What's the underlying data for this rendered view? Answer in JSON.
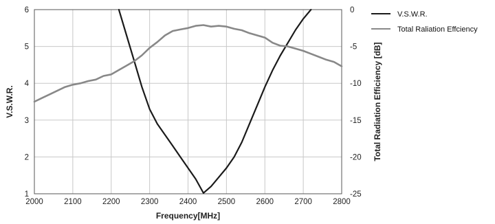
{
  "chart_data": {
    "type": "line",
    "xlabel": "Frequency[MHz]",
    "ylabel_left": "V.S.W.R.",
    "ylabel_right": "Total Radiation Efficiency [dB]",
    "xlim": [
      2000,
      2800
    ],
    "ylim_left": [
      1,
      6
    ],
    "ylim_right": [
      -25,
      0
    ],
    "x_ticks": [
      2000,
      2100,
      2200,
      2300,
      2400,
      2500,
      2600,
      2700,
      2800
    ],
    "y_left_ticks": [
      1,
      2,
      3,
      4,
      5,
      6
    ],
    "y_right_ticks": [
      0,
      -5,
      -10,
      -15,
      -20,
      -25
    ],
    "grid": true,
    "legend_position": "outside-top-right",
    "series": [
      {
        "name": "V.S.W.R.",
        "axis": "left",
        "color": "#1a1a1a",
        "x": [
          2220,
          2240,
          2260,
          2280,
          2300,
          2320,
          2340,
          2360,
          2380,
          2400,
          2420,
          2440,
          2460,
          2480,
          2500,
          2520,
          2540,
          2560,
          2580,
          2600,
          2620,
          2640,
          2660,
          2680,
          2700,
          2720
        ],
        "y": [
          6.0,
          5.3,
          4.6,
          3.9,
          3.3,
          2.9,
          2.6,
          2.3,
          2.0,
          1.7,
          1.4,
          1.02,
          1.2,
          1.45,
          1.7,
          2.0,
          2.4,
          2.9,
          3.4,
          3.9,
          4.35,
          4.75,
          5.1,
          5.45,
          5.75,
          6.0
        ]
      },
      {
        "name": "Total Raliation Effciency",
        "axis": "right",
        "color": "#888888",
        "x": [
          2000,
          2020,
          2040,
          2060,
          2080,
          2100,
          2120,
          2140,
          2160,
          2180,
          2200,
          2220,
          2240,
          2260,
          2280,
          2300,
          2320,
          2340,
          2360,
          2380,
          2400,
          2420,
          2440,
          2460,
          2480,
          2500,
          2520,
          2540,
          2560,
          2580,
          2600,
          2620,
          2640,
          2660,
          2680,
          2700,
          2720,
          2740,
          2760,
          2780,
          2800
        ],
        "y": [
          -12.5,
          -12.0,
          -11.5,
          -11.0,
          -10.5,
          -10.2,
          -10.0,
          -9.7,
          -9.5,
          -9.0,
          -8.8,
          -8.2,
          -7.6,
          -7.0,
          -6.2,
          -5.2,
          -4.4,
          -3.5,
          -2.9,
          -2.7,
          -2.5,
          -2.2,
          -2.1,
          -2.3,
          -2.2,
          -2.3,
          -2.6,
          -2.8,
          -3.2,
          -3.5,
          -3.8,
          -4.5,
          -4.9,
          -5.0,
          -5.3,
          -5.6,
          -6.0,
          -6.4,
          -6.8,
          -7.1,
          -7.7
        ]
      }
    ]
  }
}
